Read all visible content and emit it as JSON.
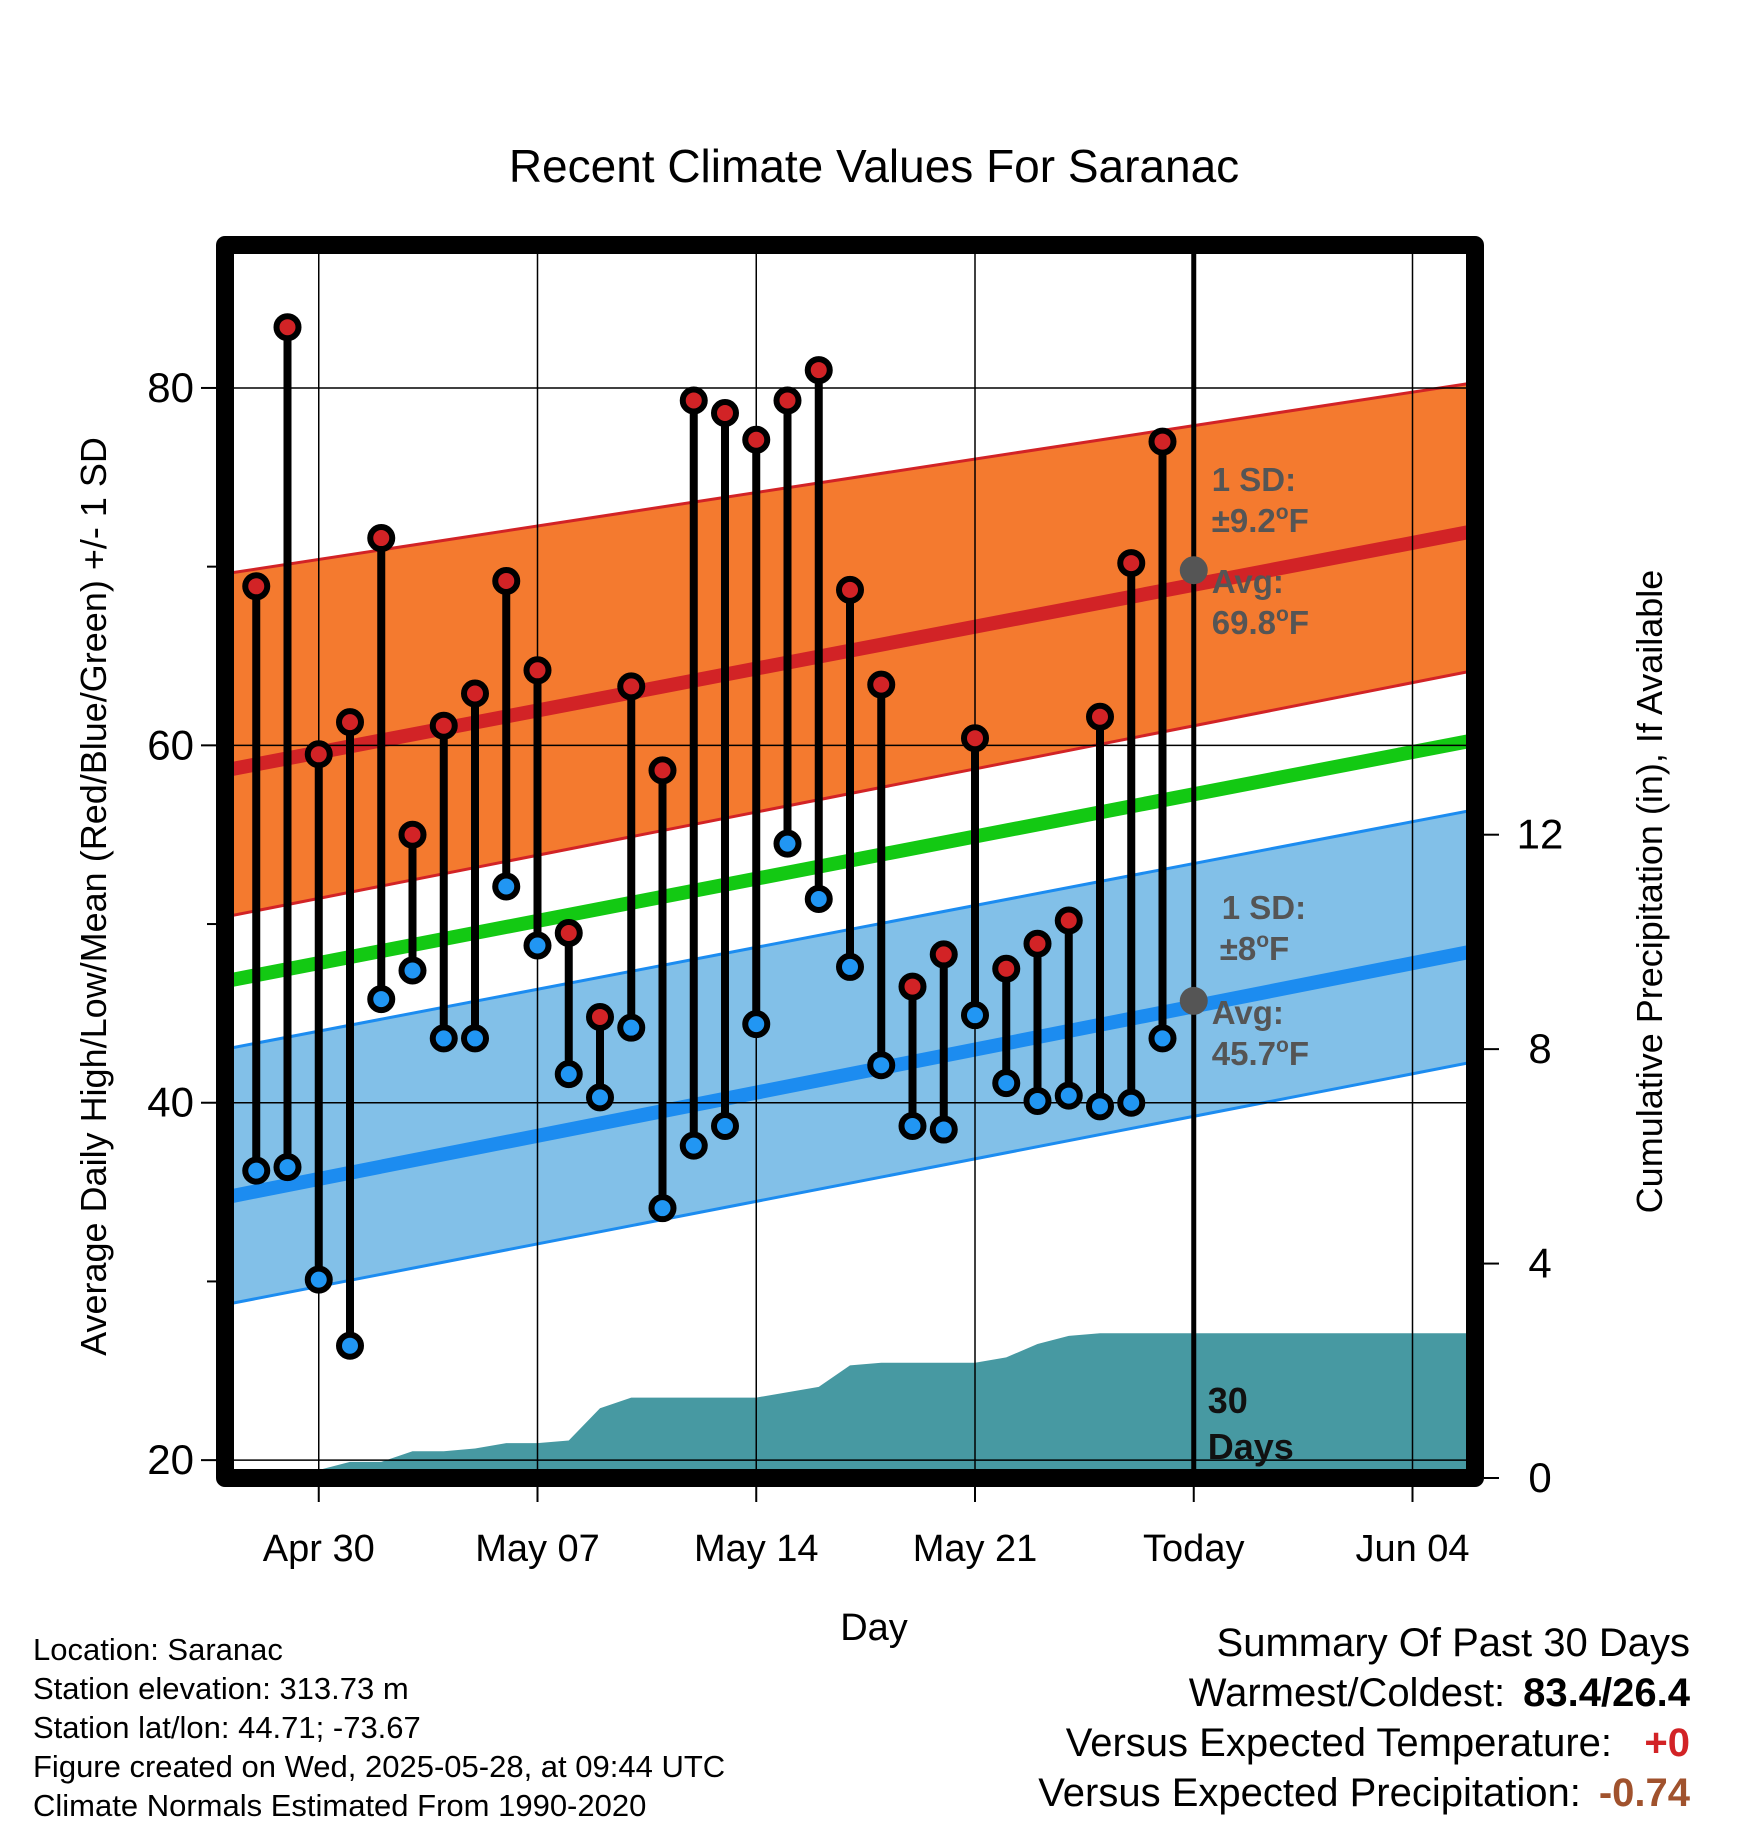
{
  "chart_data": {
    "type": "line",
    "title": "Recent Climate Values For Saranac",
    "xlabel": "Day",
    "ylabel": "Average Daily High/Low/Mean (Red/Blue/Green) +/- 1 SD",
    "y2label": "Cumulative Precipitation (in), If Available",
    "xlim": [
      "2025-04-27",
      "2025-06-06"
    ],
    "ylim": [
      19,
      88
    ],
    "y2lim": [
      0,
      23
    ],
    "x_tick_labels": [
      {
        "date": "2025-04-30",
        "label": "Apr 30"
      },
      {
        "date": "2025-05-07",
        "label": "May 07"
      },
      {
        "date": "2025-05-14",
        "label": "May 14"
      },
      {
        "date": "2025-05-21",
        "label": "May 21"
      },
      {
        "date": "2025-05-28",
        "label": "Today"
      },
      {
        "date": "2025-06-04",
        "label": "Jun 04"
      }
    ],
    "y_ticks": [
      20,
      40,
      60,
      80
    ],
    "y2_ticks": [
      0,
      4,
      8,
      12
    ],
    "grid": true,
    "dates": [
      "2025-04-28",
      "2025-04-29",
      "2025-04-30",
      "2025-05-01",
      "2025-05-02",
      "2025-05-03",
      "2025-05-04",
      "2025-05-05",
      "2025-05-06",
      "2025-05-07",
      "2025-05-08",
      "2025-05-09",
      "2025-05-10",
      "2025-05-11",
      "2025-05-12",
      "2025-05-13",
      "2025-05-14",
      "2025-05-15",
      "2025-05-16",
      "2025-05-17",
      "2025-05-18",
      "2025-05-19",
      "2025-05-20",
      "2025-05-21",
      "2025-05-22",
      "2025-05-23",
      "2025-05-24",
      "2025-05-25",
      "2025-05-26",
      "2025-05-27"
    ],
    "daily_high": [
      68.9,
      83.4,
      59.5,
      61.3,
      71.6,
      55.0,
      61.1,
      62.9,
      69.2,
      64.2,
      49.5,
      44.8,
      63.3,
      58.6,
      79.3,
      78.6,
      77.1,
      79.3,
      81.0,
      68.7,
      63.4,
      46.5,
      48.3,
      60.4,
      47.5,
      48.9,
      50.2,
      61.6,
      70.2,
      77.0
    ],
    "daily_low": [
      36.2,
      36.4,
      30.1,
      26.4,
      45.8,
      47.4,
      43.6,
      43.6,
      52.1,
      48.8,
      41.6,
      40.3,
      44.2,
      34.1,
      37.6,
      38.7,
      44.4,
      54.5,
      51.4,
      47.6,
      42.1,
      38.7,
      38.5,
      44.9,
      41.1,
      40.1,
      40.4,
      39.8,
      40.0,
      43.6
    ],
    "normals": {
      "dates": [
        "2025-04-27",
        "2025-06-06"
      ],
      "high_mean": [
        58.6,
        72.0
      ],
      "high_upper": [
        69.6,
        80.3
      ],
      "high_lower": [
        50.4,
        64.2
      ],
      "low_mean": [
        34.7,
        48.5
      ],
      "low_upper": [
        43.0,
        56.4
      ],
      "low_lower": [
        28.7,
        42.3
      ],
      "mean": [
        46.8,
        60.3
      ]
    },
    "precip_dates": [
      "2025-04-27",
      "2025-04-28",
      "2025-04-29",
      "2025-04-30",
      "2025-05-01",
      "2025-05-02",
      "2025-05-03",
      "2025-05-04",
      "2025-05-05",
      "2025-05-06",
      "2025-05-07",
      "2025-05-08",
      "2025-05-09",
      "2025-05-10",
      "2025-05-11",
      "2025-05-12",
      "2025-05-13",
      "2025-05-14",
      "2025-05-15",
      "2025-05-16",
      "2025-05-17",
      "2025-05-18",
      "2025-05-19",
      "2025-05-20",
      "2025-05-21",
      "2025-05-22",
      "2025-05-23",
      "2025-05-24",
      "2025-05-25",
      "2025-05-26",
      "2025-05-27",
      "2025-05-28",
      "2025-06-06"
    ],
    "cumulative_precip": [
      0,
      0,
      0.15,
      0.15,
      0.3,
      0.3,
      0.5,
      0.5,
      0.55,
      0.65,
      0.65,
      0.7,
      1.3,
      1.5,
      1.5,
      1.5,
      1.5,
      1.5,
      1.6,
      1.7,
      2.1,
      2.15,
      2.15,
      2.15,
      2.15,
      2.25,
      2.5,
      2.65,
      2.7,
      2.7,
      2.7,
      2.7,
      2.7
    ],
    "annotations": {
      "high_sd": "1 SD:",
      "high_sd_value": "±9.2",
      "high_avg": "Avg:",
      "high_avg_value": "69.8",
      "low_sd": "1 SD:",
      "low_sd_value": "±8",
      "low_avg": "Avg:",
      "low_avg_value": "45.7",
      "degree_unit": "o",
      "unit_suffix": "F",
      "days_line1": "30",
      "days_line2": "Days"
    },
    "today_marker": {
      "date": "2025-05-28",
      "high_avg": 69.8,
      "low_avg": 45.7
    },
    "colors": {
      "high_band": "#f47a2f",
      "high_line": "#d22326",
      "low_band": "#82c0e8",
      "low_line": "#1c8cf0",
      "mean_line": "#13c913",
      "precip": "#4799a2",
      "high_dot": "#d22326",
      "low_dot": "#2196f3",
      "annotation_text": "#555555",
      "today_dot": "#555555",
      "temp_anomaly": "#d22326",
      "precip_anomaly": "#a0522d"
    }
  },
  "info": {
    "location": "Location: Saranac",
    "elevation": "Station elevation: 313.73 m",
    "latlon": "Station lat/lon: 44.71; -73.67",
    "created": "Figure created on Wed, 2025-05-28, at 09:44 UTC",
    "normals": "Climate Normals Estimated From 1990-2020"
  },
  "summary": {
    "title": "Summary Of Past 30 Days",
    "warmest_label": "Warmest/Coldest:",
    "warmest_value": "83.4/26.4",
    "temp_label": "Versus Expected Temperature:",
    "temp_value": "+0",
    "precip_label": "Versus Expected Precipitation:",
    "precip_value": "-0.74"
  }
}
